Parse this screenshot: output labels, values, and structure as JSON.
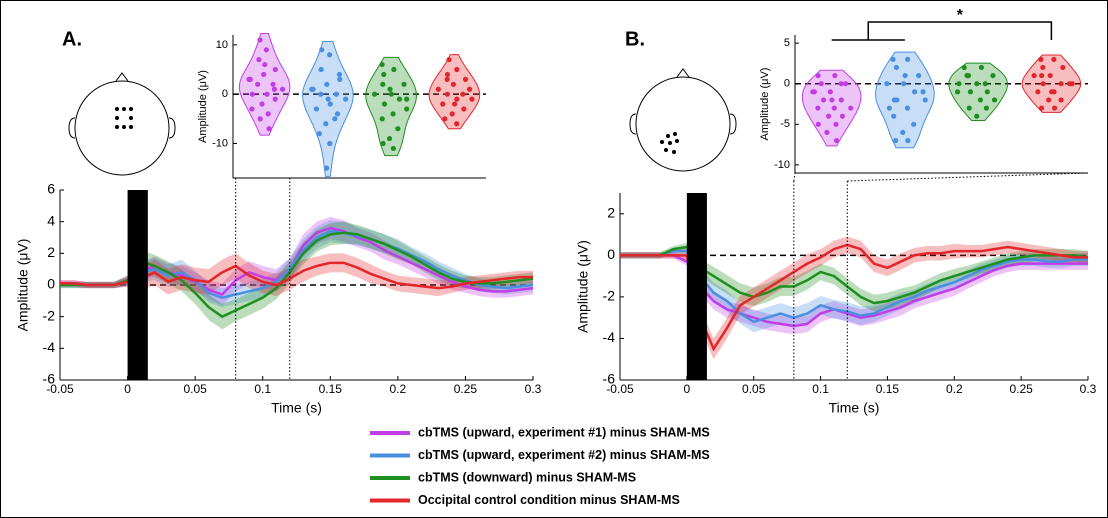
{
  "chart_data": [
    {
      "type": "line",
      "panel_label": "A.",
      "xlabel": "Time (s)",
      "ylabel": "Amplitude (μV)",
      "xlim": [
        -0.05,
        0.3
      ],
      "ylim": [
        -6,
        6
      ],
      "xticks": [
        -0.05,
        0,
        0.05,
        0.1,
        0.15,
        0.2,
        0.25,
        0.3
      ],
      "yticks": [
        -6,
        -4,
        -2,
        0,
        2,
        4,
        6
      ],
      "hline": 0,
      "stimulus": [
        0,
        0.015
      ],
      "window": [
        0.08,
        0.12
      ],
      "x": [
        -0.05,
        -0.04,
        -0.03,
        -0.02,
        -0.01,
        0,
        0.01,
        0.02,
        0.03,
        0.04,
        0.05,
        0.06,
        0.07,
        0.08,
        0.09,
        0.1,
        0.11,
        0.12,
        0.13,
        0.14,
        0.15,
        0.16,
        0.17,
        0.18,
        0.19,
        0.2,
        0.21,
        0.22,
        0.23,
        0.24,
        0.25,
        0.26,
        0.27,
        0.28,
        0.29,
        0.3
      ],
      "series": [
        {
          "name": "cbTMS (upward, experiment #1) minus SHAM-MS",
          "color": "#c33de6",
          "values": [
            0.1,
            0.1,
            0,
            0,
            0,
            0.3,
            0.8,
            1.2,
            0.8,
            0.6,
            0.2,
            -0.3,
            -0.6,
            0.3,
            0.8,
            0.5,
            0.3,
            1.0,
            2.5,
            3.3,
            3.6,
            3.4,
            3.0,
            2.7,
            2.2,
            1.8,
            1.4,
            1.0,
            0.6,
            0.2,
            -0.1,
            -0.3,
            -0.4,
            -0.4,
            -0.3,
            -0.2
          ],
          "errors": [
            0.2,
            0.2,
            0.2,
            0.2,
            0.2,
            0.3,
            0.6,
            0.6,
            0.6,
            0.6,
            0.6,
            0.6,
            0.7,
            0.7,
            0.7,
            0.7,
            0.7,
            0.7,
            0.7,
            0.7,
            0.7,
            0.7,
            0.6,
            0.6,
            0.6,
            0.5,
            0.5,
            0.5,
            0.5,
            0.5,
            0.4,
            0.4,
            0.4,
            0.4,
            0.4,
            0.4
          ]
        },
        {
          "name": "cbTMS (upward, experiment #2) minus SHAM-MS",
          "color": "#4a8fe0",
          "values": [
            0,
            0,
            0,
            0,
            0,
            0.2,
            0.8,
            1.0,
            0.6,
            0.8,
            0.3,
            -0.5,
            -0.8,
            -0.6,
            -0.4,
            -0.2,
            0.2,
            1.0,
            2.2,
            3.0,
            3.4,
            3.3,
            3.1,
            2.9,
            2.6,
            2.3,
            1.9,
            1.5,
            1.0,
            0.6,
            0.3,
            0.0,
            -0.1,
            -0.2,
            -0.1,
            0.0
          ],
          "errors": [
            0.2,
            0.2,
            0.2,
            0.2,
            0.2,
            0.3,
            0.6,
            0.7,
            0.7,
            0.8,
            0.6,
            0.6,
            0.6,
            0.6,
            0.6,
            0.6,
            0.6,
            0.7,
            0.7,
            0.7,
            0.7,
            0.7,
            0.6,
            0.6,
            0.6,
            0.6,
            0.5,
            0.5,
            0.5,
            0.5,
            0.4,
            0.4,
            0.4,
            0.4,
            0.4,
            0.4
          ]
        },
        {
          "name": "cbTMS (downward) minus SHAM-MS",
          "color": "#1f8f1f",
          "values": [
            0,
            0,
            0,
            0,
            0,
            0.3,
            1.5,
            1.2,
            0.8,
            0.3,
            -0.5,
            -1.4,
            -2.0,
            -1.6,
            -1.2,
            -0.8,
            -0.2,
            0.8,
            2.0,
            2.8,
            3.2,
            3.3,
            3.2,
            2.9,
            2.6,
            2.2,
            1.8,
            1.3,
            0.8,
            0.4,
            0.2,
            0.1,
            0.1,
            0.2,
            0.3,
            0.4
          ],
          "errors": [
            0.2,
            0.2,
            0.2,
            0.2,
            0.2,
            0.3,
            0.7,
            0.7,
            0.7,
            0.7,
            0.7,
            0.8,
            0.8,
            0.7,
            0.7,
            0.7,
            0.7,
            0.7,
            0.7,
            0.7,
            0.7,
            0.7,
            0.6,
            0.6,
            0.6,
            0.6,
            0.5,
            0.5,
            0.5,
            0.5,
            0.4,
            0.4,
            0.4,
            0.4,
            0.4,
            0.4
          ]
        },
        {
          "name": "Occipital control condition minus SHAM-MS",
          "color": "#e3262b",
          "values": [
            0.1,
            0.1,
            0,
            0,
            0,
            0.2,
            0.4,
            0.8,
            0.2,
            0.5,
            0.3,
            0.2,
            0.8,
            1.2,
            0.6,
            0.2,
            0.0,
            0.4,
            0.9,
            1.2,
            1.4,
            1.4,
            1.1,
            0.7,
            0.4,
            0.1,
            0.0,
            -0.1,
            -0.2,
            -0.1,
            0.1,
            0.2,
            0.3,
            0.4,
            0.5,
            0.5
          ],
          "errors": [
            0.2,
            0.2,
            0.2,
            0.2,
            0.2,
            0.3,
            0.7,
            0.8,
            0.8,
            0.8,
            0.8,
            0.8,
            0.8,
            0.8,
            0.8,
            0.7,
            0.7,
            0.7,
            0.7,
            0.6,
            0.6,
            0.6,
            0.6,
            0.6,
            0.5,
            0.5,
            0.5,
            0.5,
            0.5,
            0.4,
            0.4,
            0.4,
            0.4,
            0.4,
            0.4,
            0.4
          ]
        }
      ]
    },
    {
      "type": "violin",
      "ylabel": "Amplitude (μV)",
      "ylim": [
        -17,
        12
      ],
      "yticks": [
        -10,
        0,
        10
      ],
      "hline": 0,
      "series": [
        {
          "color": "#c33de6",
          "values": [
            11,
            9,
            7,
            5,
            4,
            3,
            2,
            2,
            1,
            0,
            0,
            -1,
            -2,
            -3,
            -4,
            -5,
            -7,
            6,
            3,
            1
          ]
        },
        {
          "color": "#4a8fe0",
          "values": [
            9,
            8,
            5,
            3,
            2,
            1,
            0,
            0,
            -1,
            -2,
            -3,
            -4,
            -6,
            -8,
            -10,
            -15,
            4,
            -1,
            1,
            -5
          ]
        },
        {
          "color": "#1f8f1f",
          "values": [
            6,
            5,
            4,
            2,
            1,
            0,
            -1,
            -2,
            -3,
            -4,
            -5,
            -7,
            -9,
            -10,
            -11,
            2,
            -1,
            0
          ]
        },
        {
          "color": "#e3262b",
          "values": [
            7,
            5,
            4,
            3,
            2,
            1,
            0,
            0,
            -1,
            -1,
            -2,
            -3,
            -4,
            -5,
            -6,
            3,
            1,
            -2
          ]
        }
      ]
    },
    {
      "type": "line",
      "panel_label": "B.",
      "xlabel": "Time (s)",
      "ylabel": "Amplitude (μV)",
      "xlim": [
        -0.05,
        0.3
      ],
      "ylim": [
        -6,
        3
      ],
      "xticks": [
        -0.05,
        0,
        0.05,
        0.1,
        0.15,
        0.2,
        0.25,
        0.3
      ],
      "yticks": [
        -6,
        -4,
        -2,
        0,
        2
      ],
      "hline": 0,
      "stimulus": [
        0,
        0.015
      ],
      "window": [
        0.08,
        0.12
      ],
      "x": [
        -0.05,
        -0.04,
        -0.03,
        -0.02,
        -0.01,
        0,
        0.01,
        0.02,
        0.03,
        0.04,
        0.05,
        0.06,
        0.07,
        0.08,
        0.09,
        0.1,
        0.11,
        0.12,
        0.13,
        0.14,
        0.15,
        0.16,
        0.17,
        0.18,
        0.19,
        0.2,
        0.21,
        0.22,
        0.23,
        0.24,
        0.25,
        0.26,
        0.27,
        0.28,
        0.29,
        0.3
      ],
      "series": [
        {
          "color": "#c33de6",
          "values": [
            0,
            0,
            0,
            0,
            0,
            -0.3,
            -1.5,
            -2.2,
            -2.6,
            -2.8,
            -3.0,
            -3.2,
            -3.3,
            -3.4,
            -3.3,
            -2.8,
            -2.6,
            -2.8,
            -3.0,
            -2.9,
            -2.7,
            -2.5,
            -2.2,
            -2.0,
            -1.8,
            -1.6,
            -1.3,
            -1.0,
            -0.7,
            -0.5,
            -0.4,
            -0.4,
            -0.4,
            -0.4,
            -0.4,
            -0.4
          ],
          "errors": [
            0.15,
            0.15,
            0.15,
            0.15,
            0.15,
            0.2,
            0.4,
            0.4,
            0.4,
            0.4,
            0.4,
            0.4,
            0.4,
            0.4,
            0.4,
            0.4,
            0.4,
            0.4,
            0.4,
            0.4,
            0.4,
            0.4,
            0.35,
            0.35,
            0.35,
            0.35,
            0.3,
            0.3,
            0.3,
            0.3,
            0.3,
            0.3,
            0.3,
            0.3,
            0.3,
            0.3
          ]
        },
        {
          "color": "#4a8fe0",
          "values": [
            0,
            0,
            0,
            0,
            0.2,
            0.2,
            -1.0,
            -1.8,
            -2.2,
            -2.8,
            -3.2,
            -3.0,
            -2.8,
            -3.0,
            -2.8,
            -2.4,
            -2.6,
            -2.7,
            -2.9,
            -2.8,
            -2.5,
            -2.2,
            -2.0,
            -1.7,
            -1.5,
            -1.3,
            -1.0,
            -0.7,
            -0.5,
            -0.3,
            -0.2,
            -0.2,
            -0.3,
            -0.3,
            -0.2,
            -0.2
          ],
          "errors": [
            0.15,
            0.15,
            0.15,
            0.15,
            0.15,
            0.2,
            0.4,
            0.5,
            0.5,
            0.5,
            0.5,
            0.5,
            0.5,
            0.5,
            0.5,
            0.45,
            0.45,
            0.45,
            0.45,
            0.4,
            0.4,
            0.4,
            0.35,
            0.35,
            0.35,
            0.35,
            0.3,
            0.3,
            0.3,
            0.3,
            0.3,
            0.3,
            0.3,
            0.3,
            0.3,
            0.3
          ]
        },
        {
          "color": "#1f8f1f",
          "values": [
            0,
            0,
            0,
            0,
            0.3,
            0.4,
            -0.6,
            -1.0,
            -1.4,
            -1.8,
            -2.0,
            -1.8,
            -1.5,
            -1.5,
            -1.2,
            -0.8,
            -1.0,
            -1.5,
            -2.0,
            -2.3,
            -2.2,
            -2.0,
            -1.8,
            -1.5,
            -1.2,
            -1.0,
            -0.8,
            -0.6,
            -0.4,
            -0.2,
            -0.1,
            0.0,
            0.0,
            0.0,
            0.0,
            -0.1
          ],
          "errors": [
            0.15,
            0.15,
            0.15,
            0.15,
            0.15,
            0.2,
            0.4,
            0.45,
            0.45,
            0.45,
            0.45,
            0.45,
            0.45,
            0.45,
            0.45,
            0.4,
            0.4,
            0.4,
            0.4,
            0.4,
            0.4,
            0.4,
            0.35,
            0.35,
            0.35,
            0.35,
            0.3,
            0.3,
            0.3,
            0.3,
            0.3,
            0.3,
            0.3,
            0.3,
            0.3,
            0.3
          ]
        },
        {
          "color": "#e3262b",
          "values": [
            0,
            0,
            0,
            0,
            0,
            0,
            -3.0,
            -4.5,
            -3.5,
            -2.4,
            -2.0,
            -1.6,
            -1.2,
            -0.8,
            -0.4,
            -0.1,
            0.3,
            0.5,
            0.3,
            -0.4,
            -0.6,
            -0.3,
            0.0,
            0.1,
            0.1,
            0.2,
            0.2,
            0.2,
            0.3,
            0.4,
            0.3,
            0.2,
            0.1,
            0.0,
            -0.1,
            -0.1
          ],
          "errors": [
            0.15,
            0.15,
            0.15,
            0.15,
            0.15,
            0.2,
            0.5,
            0.5,
            0.5,
            0.45,
            0.45,
            0.45,
            0.45,
            0.45,
            0.45,
            0.4,
            0.4,
            0.4,
            0.4,
            0.4,
            0.4,
            0.4,
            0.35,
            0.35,
            0.35,
            0.35,
            0.3,
            0.3,
            0.3,
            0.3,
            0.3,
            0.3,
            0.3,
            0.3,
            0.3,
            0.3
          ]
        }
      ]
    },
    {
      "type": "violin",
      "ylabel": "Amplitude (μV)",
      "ylim": [
        -11,
        6
      ],
      "yticks": [
        -10,
        -5,
        0,
        5
      ],
      "hline": 0,
      "annotation": "*",
      "compare": [
        [
          0,
          1
        ],
        3
      ],
      "series": [
        {
          "color": "#c33de6",
          "values": [
            1,
            1,
            0,
            0,
            -1,
            -1,
            -2,
            -2,
            -3,
            -3,
            -3,
            -4,
            -4,
            -5,
            -5,
            -6,
            -7,
            -2,
            -1,
            0
          ]
        },
        {
          "color": "#4a8fe0",
          "values": [
            3,
            3,
            2,
            1,
            0,
            0,
            -1,
            -2,
            -2,
            -3,
            -4,
            -5,
            -6,
            -7,
            -7,
            -2,
            -1,
            1,
            -3
          ]
        },
        {
          "color": "#1f8f1f",
          "values": [
            2,
            2,
            1,
            1,
            0,
            0,
            -1,
            -1,
            -2,
            -2,
            -3,
            -3,
            -4,
            -1,
            0,
            1
          ]
        },
        {
          "color": "#e3262b",
          "values": [
            3,
            3,
            2,
            2,
            1,
            1,
            0,
            0,
            0,
            -1,
            -1,
            -2,
            -2,
            -3,
            -3,
            1,
            0,
            -1
          ]
        }
      ]
    }
  ]
}
